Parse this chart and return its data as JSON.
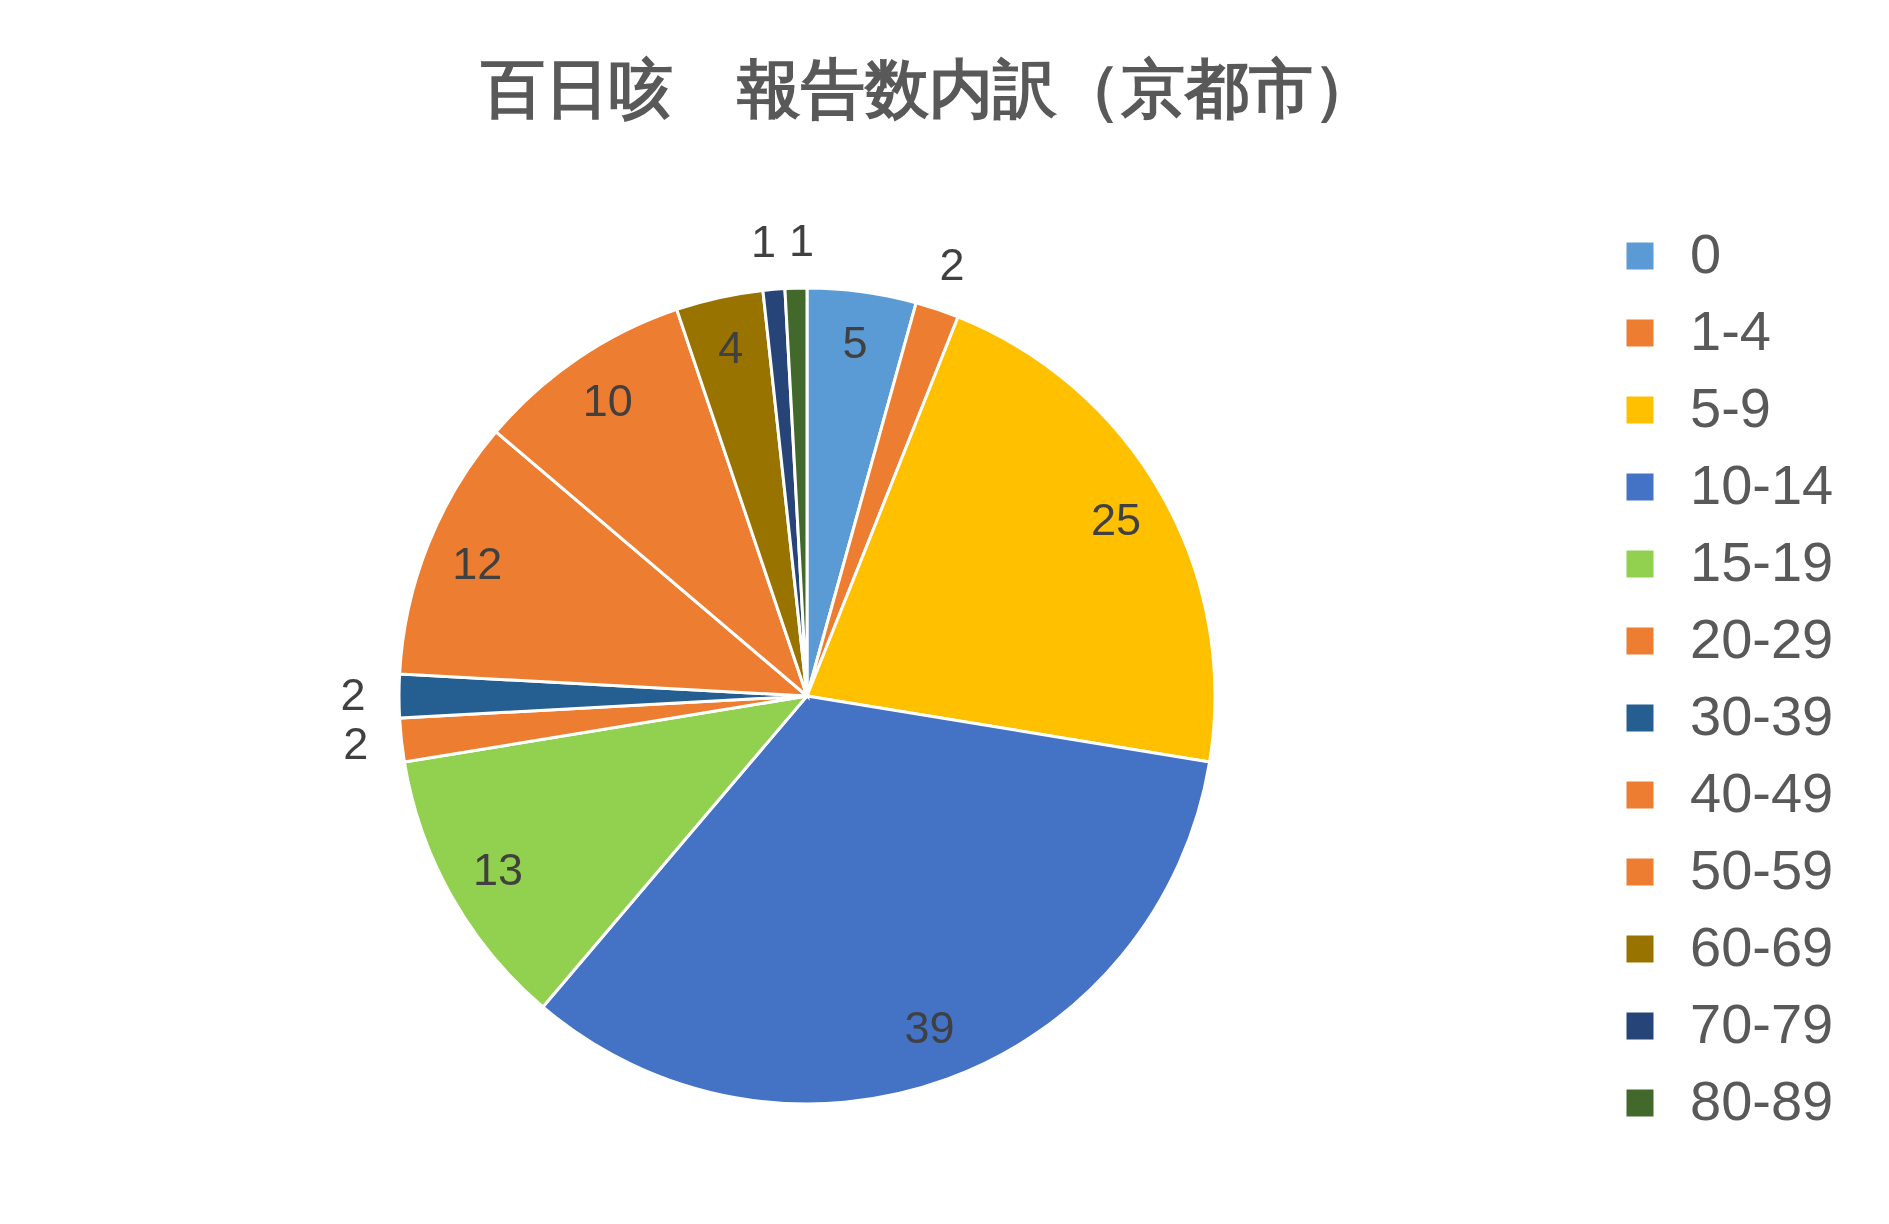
{
  "chart_data": {
    "type": "pie",
    "title": "百日咳　報告数内訳（京都市）",
    "categories": [
      "0",
      "1-4",
      "5-9",
      "10-14",
      "15-19",
      "20-29",
      "30-39",
      "40-49",
      "50-59",
      "60-69",
      "70-79",
      "80-89"
    ],
    "values": [
      5,
      2,
      25,
      39,
      13,
      2,
      2,
      12,
      10,
      4,
      1,
      1
    ],
    "colors": [
      "#5b9bd5",
      "#ed7d31",
      "#ffc000",
      "#4472c4",
      "#92d050",
      "#ed7d31",
      "#255e91",
      "#ed7d31",
      "#ed7d31",
      "#997300",
      "#264478",
      "#43682b"
    ],
    "data_labels": true,
    "legend": "right"
  }
}
